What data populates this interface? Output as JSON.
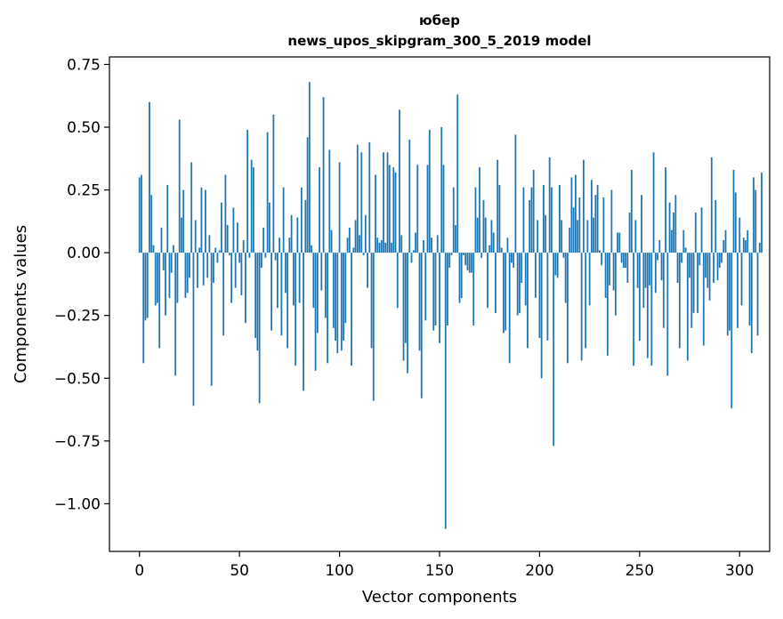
{
  "chart_data": {
    "type": "bar",
    "title_line1": "юбер",
    "title_line2": "news_upos_skipgram_300_5_2019 model",
    "xlabel": "Vector components",
    "ylabel": "Components values",
    "xlim": [
      -15,
      315
    ],
    "ylim": [
      -1.19,
      0.78
    ],
    "xticks": [
      0,
      50,
      100,
      150,
      200,
      250,
      300
    ],
    "xtick_labels": [
      "0",
      "50",
      "100",
      "150",
      "200",
      "250",
      "300"
    ],
    "yticks": [
      -1.0,
      -0.75,
      -0.5,
      -0.25,
      0.0,
      0.25,
      0.5,
      0.75
    ],
    "ytick_labels": [
      "−1.00",
      "−0.75",
      "−0.50",
      "−0.25",
      "0.00",
      "0.25",
      "0.50",
      "0.75"
    ],
    "bar_color": "#1f77b4",
    "values": [
      0.3,
      0.31,
      -0.44,
      -0.27,
      -0.26,
      0.6,
      0.23,
      0.03,
      -0.21,
      -0.2,
      -0.38,
      0.1,
      -0.07,
      -0.25,
      0.27,
      -0.18,
      -0.08,
      0.03,
      -0.49,
      -0.2,
      0.53,
      0.14,
      0.25,
      -0.18,
      -0.16,
      -0.1,
      0.36,
      -0.61,
      0.13,
      -0.14,
      0.02,
      0.26,
      -0.13,
      0.25,
      -0.1,
      0.07,
      -0.53,
      -0.12,
      0.02,
      -0.04,
      0.01,
      0.2,
      -0.33,
      0.31,
      0.11,
      -0.01,
      -0.2,
      0.18,
      -0.14,
      0.12,
      -0.04,
      -0.17,
      0.05,
      -0.28,
      0.49,
      -0.02,
      0.37,
      0.34,
      -0.34,
      -0.39,
      -0.6,
      -0.06,
      0.1,
      -0.02,
      0.48,
      0.2,
      -0.31,
      0.55,
      -0.03,
      -0.22,
      0.06,
      -0.33,
      0.26,
      -0.16,
      -0.38,
      0.06,
      0.15,
      -0.21,
      -0.45,
      0.14,
      -0.2,
      0.26,
      -0.55,
      0.21,
      0.46,
      0.68,
      0.03,
      -0.22,
      -0.47,
      -0.32,
      0.34,
      -0.15,
      0.62,
      -0.26,
      -0.44,
      0.41,
      0.09,
      -0.3,
      -0.35,
      -0.4,
      0.36,
      -0.39,
      -0.35,
      -0.28,
      0.06,
      0.1,
      -0.45,
      0.02,
      0.13,
      0.43,
      0.07,
      0.4,
      -0.01,
      0.15,
      -0.14,
      0.44,
      -0.38,
      -0.59,
      0.31,
      0.06,
      0.04,
      0.05,
      0.4,
      0.04,
      0.4,
      0.35,
      0.04,
      0.34,
      0.32,
      -0.22,
      0.57,
      0.07,
      -0.43,
      -0.36,
      -0.48,
      0.45,
      -0.04,
      0.01,
      0.08,
      0.35,
      -0.39,
      -0.58,
      0.05,
      -0.27,
      0.35,
      0.49,
      0.06,
      -0.31,
      -0.29,
      0.07,
      -0.36,
      0.5,
      0.35,
      -1.1,
      -0.29,
      -0.06,
      -0.01,
      0.26,
      0.11,
      0.63,
      -0.2,
      -0.18,
      -0.01,
      -0.05,
      -0.07,
      -0.08,
      -0.08,
      -0.29,
      0.26,
      0.14,
      0.34,
      -0.02,
      0.21,
      0.14,
      -0.22,
      0.03,
      0.13,
      0.08,
      -0.24,
      0.37,
      0.27,
      0.02,
      -0.32,
      -0.31,
      0.06,
      -0.44,
      -0.04,
      -0.06,
      0.47,
      -0.25,
      -0.24,
      -0.12,
      0.26,
      -0.21,
      -0.38,
      0.21,
      0.26,
      0.33,
      -0.18,
      0.13,
      -0.34,
      -0.5,
      0.27,
      0.15,
      -0.35,
      0.38,
      0.26,
      -0.77,
      -0.09,
      -0.1,
      0.27,
      0.13,
      -0.02,
      -0.2,
      -0.44,
      0.1,
      0.3,
      0.18,
      0.31,
      0.13,
      0.22,
      -0.43,
      0.37,
      -0.38,
      0.13,
      -0.21,
      0.29,
      0.14,
      0.23,
      0.27,
      0.01,
      -0.05,
      0.22,
      -0.18,
      -0.41,
      -0.13,
      0.25,
      -0.15,
      -0.25,
      0.08,
      0.08,
      -0.04,
      -0.06,
      -0.06,
      -0.12,
      0.16,
      0.33,
      -0.45,
      0.13,
      -0.14,
      -0.35,
      0.23,
      -0.22,
      -0.14,
      -0.42,
      -0.13,
      -0.45,
      0.4,
      -0.16,
      -0.03,
      0.05,
      -0.11,
      -0.3,
      0.34,
      -0.49,
      0.2,
      0.09,
      0.16,
      0.23,
      -0.12,
      -0.38,
      -0.04,
      0.09,
      0.02,
      -0.43,
      -0.1,
      -0.3,
      -0.24,
      0.16,
      -0.24,
      -0.05,
      0.18,
      -0.37,
      -0.1,
      -0.14,
      -0.19,
      0.38,
      -0.12,
      0.21,
      -0.11,
      -0.06,
      -0.04,
      0.05,
      0.09,
      -0.33,
      -0.31,
      -0.62,
      0.33,
      0.24,
      -0.3,
      0.14,
      -0.21,
      0.06,
      0.05,
      0.09,
      -0.29,
      -0.4,
      0.3,
      0.25,
      -0.33,
      0.04,
      0.32
    ]
  }
}
